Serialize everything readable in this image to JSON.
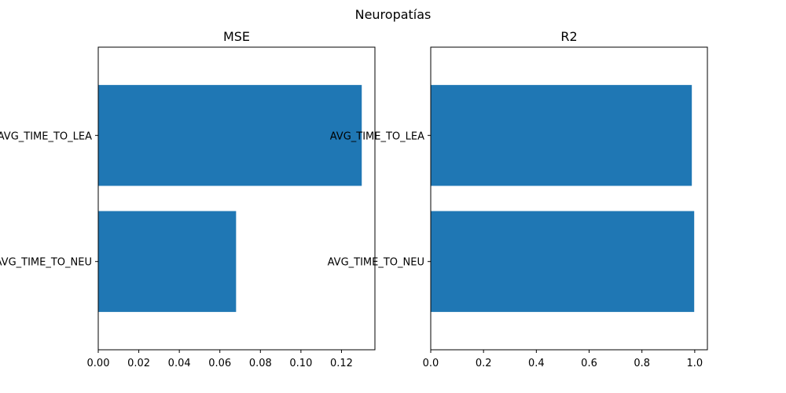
{
  "figure_title": "Neuropatías",
  "bar_color": "#1f77b4",
  "chart_data": [
    {
      "type": "bar",
      "orientation": "horizontal",
      "title": "MSE",
      "categories": [
        "AVG_TIME_TO_NEU",
        "AVG_TIME_TO_LEA"
      ],
      "values": [
        0.068,
        0.13
      ],
      "xlim": [
        0,
        0.1365
      ],
      "xticks": [
        0.0,
        0.02,
        0.04,
        0.06,
        0.08,
        0.1,
        0.12
      ],
      "xtick_labels": [
        "0.00",
        "0.02",
        "0.04",
        "0.06",
        "0.08",
        "0.10",
        "0.12"
      ],
      "xlabel": "",
      "ylabel": "",
      "grid": false
    },
    {
      "type": "bar",
      "orientation": "horizontal",
      "title": "R2",
      "categories": [
        "AVG_TIME_TO_NEU",
        "AVG_TIME_TO_LEA"
      ],
      "values": [
        0.998,
        0.989
      ],
      "xlim": [
        0,
        1.048
      ],
      "xticks": [
        0.0,
        0.2,
        0.4,
        0.6,
        0.8,
        1.0
      ],
      "xtick_labels": [
        "0.0",
        "0.2",
        "0.4",
        "0.6",
        "0.8",
        "1.0"
      ],
      "xlabel": "",
      "ylabel": "",
      "grid": false
    }
  ]
}
